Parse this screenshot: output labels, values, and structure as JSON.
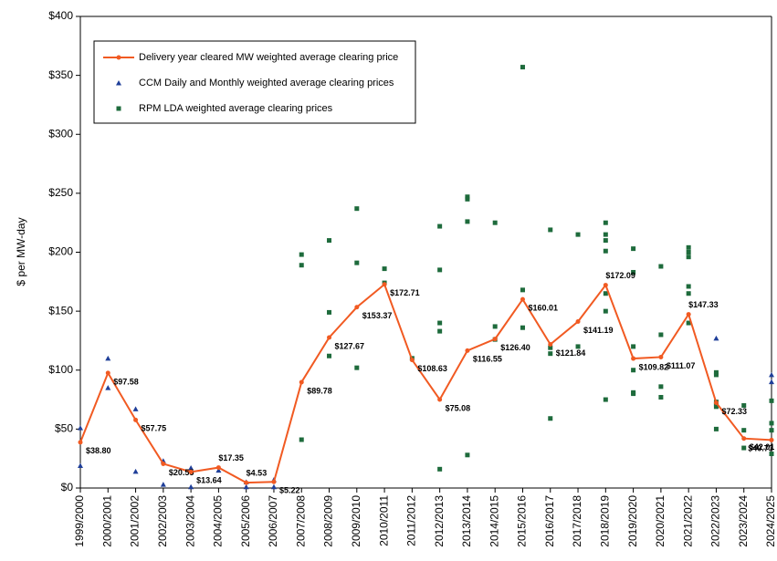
{
  "chart_data": {
    "type": "line",
    "y_label": "$ per MW-day",
    "categories": [
      "1999/2000",
      "2000/2001",
      "2001/2002",
      "2002/2003",
      "2003/2004",
      "2004/2005",
      "2005/2006",
      "2006/2007",
      "2007/2008",
      "2008/2009",
      "2009/2010",
      "2010/2011",
      "2011/2012",
      "2012/2013",
      "2013/2014",
      "2014/2015",
      "2015/2016",
      "2016/2017",
      "2017/2018",
      "2018/2019",
      "2019/2020",
      "2020/2021",
      "2021/2022",
      "2022/2023",
      "2023/2024",
      "2024/2025"
    ],
    "ylim": [
      0,
      400
    ],
    "yticks": [
      {
        "value": 0,
        "label": "$0"
      },
      {
        "value": 50,
        "label": "$50"
      },
      {
        "value": 100,
        "label": "$100"
      },
      {
        "value": 150,
        "label": "$150"
      },
      {
        "value": 200,
        "label": "$200"
      },
      {
        "value": 250,
        "label": "$250"
      },
      {
        "value": 300,
        "label": "$300"
      },
      {
        "value": 350,
        "label": "$350"
      },
      {
        "value": 400,
        "label": "$400"
      }
    ],
    "series": [
      {
        "name": "Delivery year cleared MW weighted average clearing price",
        "color": "#f15a22",
        "type": "line",
        "values": [
          38.8,
          97.58,
          57.75,
          20.55,
          13.64,
          17.35,
          4.53,
          5.22,
          89.78,
          127.67,
          153.37,
          172.71,
          108.63,
          75.08,
          116.55,
          126.4,
          160.01,
          121.84,
          141.19,
          172.09,
          109.82,
          111.07,
          147.33,
          72.33,
          42.01,
          40.73
        ],
        "value_labels": [
          "$38.80",
          "$97.58",
          "$57.75",
          "$20.55",
          "$13.64",
          "$17.35",
          "$4.53",
          "$5.22",
          "$89.78",
          "$127.67",
          "$153.37",
          "$172.71",
          "$108.63",
          "$75.08",
          "$116.55",
          "$126.40",
          "$160.01",
          "$121.84",
          "$141.19",
          "$172.09",
          "$109.82",
          "$111.07",
          "$147.33",
          "$72.33",
          "$42.01",
          "$40.73"
        ]
      },
      {
        "name": "CCM Daily and Monthly weighted average clearing prices",
        "color": "#1f3f99",
        "type": "triangle",
        "x": [
          "1999/2000",
          "1999/2000",
          "2000/2001",
          "2000/2001",
          "2001/2002",
          "2001/2002",
          "2002/2003",
          "2002/2003",
          "2003/2004",
          "2003/2004",
          "2004/2005",
          "2005/2006",
          "2005/2006",
          "2006/2007",
          "2006/2007",
          "2022/2023",
          "2024/2025",
          "2024/2025"
        ],
        "values": [
          51,
          19,
          110,
          85,
          67,
          14,
          23,
          3,
          17,
          1,
          15,
          5,
          1,
          7,
          1,
          127,
          96,
          90
        ]
      },
      {
        "name": "RPM LDA weighted average clearing prices",
        "color": "#1e6b3c",
        "type": "square",
        "x": [
          "2007/2008",
          "2007/2008",
          "2007/2008",
          "2008/2009",
          "2008/2009",
          "2008/2009",
          "2009/2010",
          "2009/2010",
          "2009/2010",
          "2010/2011",
          "2010/2011",
          "2011/2012",
          "2012/2013",
          "2012/2013",
          "2012/2013",
          "2012/2013",
          "2012/2013",
          "2013/2014",
          "2013/2014",
          "2013/2014",
          "2013/2014",
          "2014/2015",
          "2014/2015",
          "2014/2015",
          "2015/2016",
          "2015/2016",
          "2015/2016",
          "2016/2017",
          "2016/2017",
          "2016/2017",
          "2016/2017",
          "2017/2018",
          "2017/2018",
          "2018/2019",
          "2018/2019",
          "2018/2019",
          "2018/2019",
          "2018/2019",
          "2018/2019",
          "2018/2019",
          "2019/2020",
          "2019/2020",
          "2019/2020",
          "2019/2020",
          "2019/2020",
          "2019/2020",
          "2020/2021",
          "2020/2021",
          "2020/2021",
          "2020/2021",
          "2021/2022",
          "2021/2022",
          "2021/2022",
          "2021/2022",
          "2021/2022",
          "2021/2022",
          "2022/2023",
          "2022/2023",
          "2022/2023",
          "2022/2023",
          "2022/2023",
          "2022/2023",
          "2023/2024",
          "2023/2024",
          "2023/2024",
          "2024/2025",
          "2024/2025",
          "2024/2025",
          "2024/2025"
        ],
        "values": [
          198,
          189,
          41,
          210,
          149,
          112,
          237,
          191,
          102,
          186,
          174,
          110,
          222,
          185,
          140,
          133,
          16,
          247,
          245,
          226,
          28,
          225,
          137,
          126,
          357,
          168,
          136,
          219,
          119,
          114,
          59,
          215,
          120,
          225,
          215,
          210,
          201,
          165,
          150,
          75,
          203,
          183,
          120,
          100,
          81,
          80,
          188,
          130,
          86,
          77,
          204,
          200,
          196,
          171,
          165,
          140,
          98,
          96,
          73,
          71,
          69,
          50,
          70,
          49,
          34,
          74,
          55,
          49,
          29
        ]
      }
    ]
  }
}
